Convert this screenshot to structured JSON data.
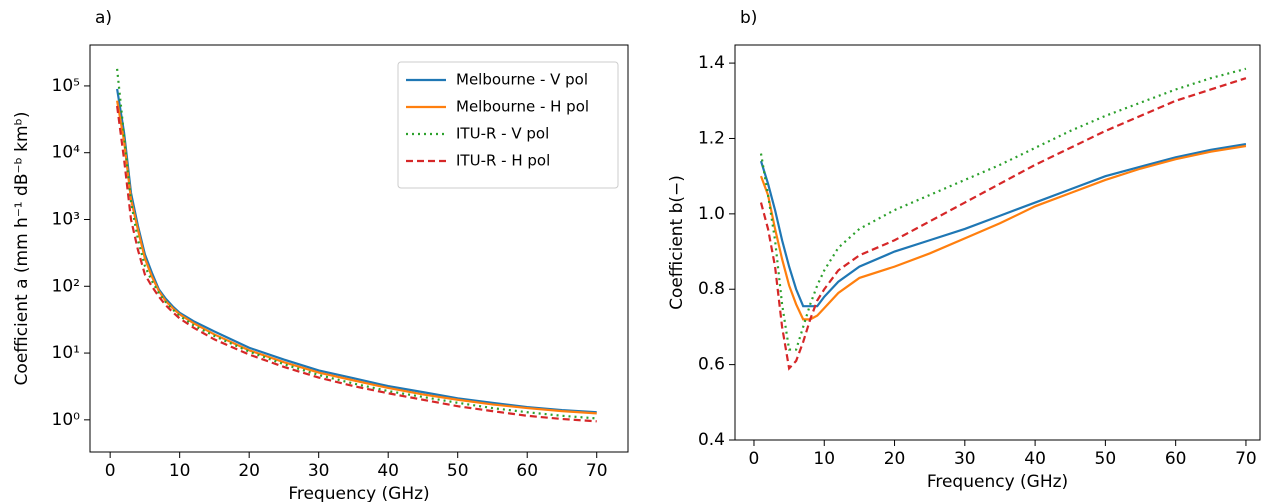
{
  "chart_data": [
    {
      "type": "line",
      "panel_label": "a)",
      "xlabel": "Frequency (GHz)",
      "ylabel": "Coefficient a (mm h⁻¹ dB⁻ᵇ kmᵇ)",
      "yscale": "log",
      "grid": false,
      "legend": "upper right",
      "xlim": [
        -2.9,
        74.5
      ],
      "ylim": [
        0.33,
        410000
      ],
      "xticks": [
        0,
        10,
        20,
        30,
        40,
        50,
        60,
        70
      ],
      "yticks": [
        {
          "value": 1,
          "label": "10⁰"
        },
        {
          "value": 10,
          "label": "10¹"
        },
        {
          "value": 100,
          "label": "10²"
        },
        {
          "value": 1000,
          "label": "10³"
        },
        {
          "value": 10000,
          "label": "10⁴"
        },
        {
          "value": 100000,
          "label": "10⁵"
        }
      ],
      "x": [
        1,
        2,
        3,
        4,
        5,
        6,
        7,
        8,
        9,
        10,
        12,
        15,
        20,
        25,
        30,
        35,
        40,
        45,
        50,
        55,
        60,
        65,
        70
      ],
      "series": [
        {
          "name": "Melbourne - V pol",
          "color": "#1f77b4",
          "style": "solid",
          "values": [
            90000,
            20000,
            2500,
            800,
            300,
            160,
            90,
            65,
            50,
            40,
            30,
            21,
            12,
            8,
            5.5,
            4.2,
            3.2,
            2.6,
            2.1,
            1.8,
            1.55,
            1.4,
            1.3
          ]
        },
        {
          "name": "Melbourne - H pol",
          "color": "#ff7f0e",
          "style": "solid",
          "values": [
            60000,
            15000,
            2000,
            700,
            260,
            140,
            85,
            60,
            47,
            38,
            28,
            19,
            11,
            7.3,
            5.1,
            3.9,
            3.0,
            2.4,
            2.0,
            1.7,
            1.5,
            1.35,
            1.25
          ]
        },
        {
          "name": "ITU-R - V pol",
          "color": "#2ca02c",
          "style": "dotted",
          "values": [
            180000,
            18000,
            1800,
            500,
            200,
            120,
            80,
            58,
            45,
            36,
            26,
            18,
            10.5,
            6.8,
            4.7,
            3.5,
            2.7,
            2.2,
            1.8,
            1.5,
            1.3,
            1.15,
            1.05
          ]
        },
        {
          "name": "ITU-R - H pol",
          "color": "#d62728",
          "style": "dashed",
          "values": [
            50000,
            8000,
            1000,
            350,
            150,
            100,
            70,
            52,
            41,
            33,
            24,
            16,
            9.5,
            6.2,
            4.3,
            3.2,
            2.5,
            2.0,
            1.6,
            1.35,
            1.15,
            1.03,
            0.95
          ]
        }
      ]
    },
    {
      "type": "line",
      "panel_label": "b)",
      "xlabel": "Frequency (GHz)",
      "ylabel": "Coefficient b(−)",
      "yscale": "linear",
      "grid": false,
      "xlim": [
        -2.7,
        72.0
      ],
      "ylim": [
        0.4,
        1.448
      ],
      "xticks": [
        0,
        10,
        20,
        30,
        40,
        50,
        60,
        70
      ],
      "yticks": [
        {
          "value": 0.4,
          "label": "0.4"
        },
        {
          "value": 0.6,
          "label": "0.6"
        },
        {
          "value": 0.8,
          "label": "0.8"
        },
        {
          "value": 1.0,
          "label": "1.0"
        },
        {
          "value": 1.2,
          "label": "1.2"
        },
        {
          "value": 1.4,
          "label": "1.4"
        }
      ],
      "x": [
        1,
        2,
        3,
        4,
        5,
        6,
        7,
        8,
        9,
        10,
        12,
        15,
        20,
        25,
        30,
        35,
        40,
        45,
        50,
        55,
        60,
        65,
        70
      ],
      "series": [
        {
          "color": "#1f77b4",
          "style": "solid",
          "values": [
            1.14,
            1.08,
            1.01,
            0.93,
            0.86,
            0.8,
            0.755,
            0.755,
            0.755,
            0.78,
            0.82,
            0.86,
            0.9,
            0.93,
            0.96,
            0.995,
            1.03,
            1.065,
            1.1,
            1.125,
            1.15,
            1.17,
            1.185
          ]
        },
        {
          "color": "#ff7f0e",
          "style": "solid",
          "values": [
            1.1,
            1.05,
            0.96,
            0.88,
            0.81,
            0.76,
            0.72,
            0.72,
            0.73,
            0.75,
            0.79,
            0.83,
            0.86,
            0.895,
            0.935,
            0.975,
            1.02,
            1.055,
            1.09,
            1.12,
            1.145,
            1.165,
            1.18
          ]
        },
        {
          "color": "#2ca02c",
          "style": "dotted",
          "values": [
            1.16,
            1.05,
            0.93,
            0.76,
            0.64,
            0.64,
            0.7,
            0.76,
            0.81,
            0.85,
            0.91,
            0.96,
            1.01,
            1.05,
            1.09,
            1.13,
            1.175,
            1.22,
            1.26,
            1.295,
            1.33,
            1.36,
            1.385
          ]
        },
        {
          "color": "#d62728",
          "style": "dashed",
          "values": [
            1.03,
            0.96,
            0.86,
            0.7,
            0.59,
            0.61,
            0.66,
            0.72,
            0.77,
            0.8,
            0.85,
            0.89,
            0.93,
            0.98,
            1.03,
            1.08,
            1.13,
            1.175,
            1.22,
            1.26,
            1.3,
            1.33,
            1.36
          ]
        }
      ]
    }
  ]
}
